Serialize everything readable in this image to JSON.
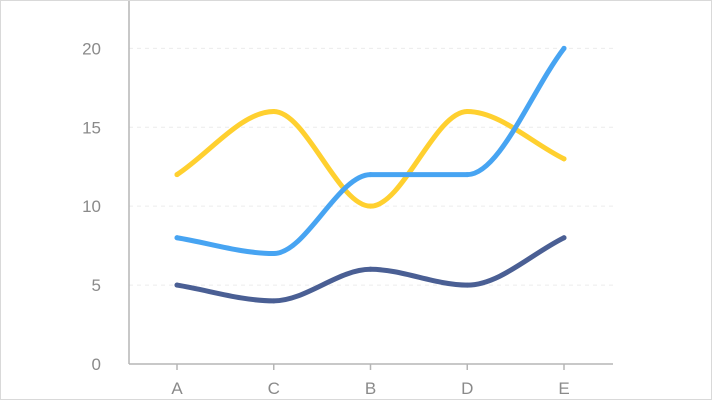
{
  "chart_data": {
    "type": "line",
    "smooth": true,
    "categories": [
      "A",
      "C",
      "B",
      "D",
      "E"
    ],
    "series": [
      {
        "values": [
          12,
          16,
          10,
          16,
          13
        ],
        "color": "#ffd02f"
      },
      {
        "values": [
          8,
          7,
          12,
          12,
          20
        ],
        "color": "#47a4f2"
      },
      {
        "values": [
          5,
          4,
          6,
          5,
          8
        ],
        "color": "#4a5f94"
      }
    ],
    "y_ticks": [
      "0",
      "5",
      "10",
      "15",
      "20"
    ],
    "ylim": [
      0,
      23
    ],
    "grid": true,
    "legend": false
  }
}
